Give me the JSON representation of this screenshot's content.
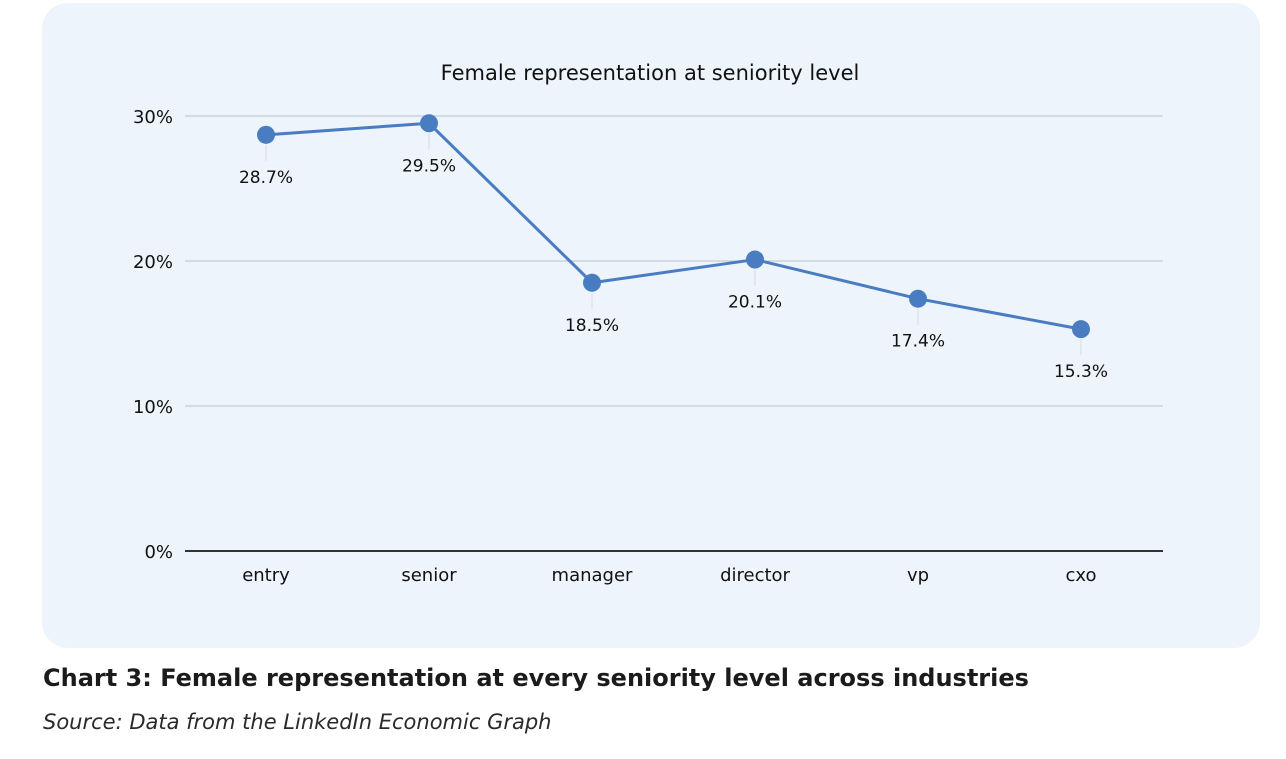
{
  "chart_data": {
    "type": "line",
    "title": "Female representation at seniority level",
    "categories": [
      "entry",
      "senior",
      "manager",
      "director",
      "vp",
      "cxo"
    ],
    "series": [
      {
        "values": [
          28.7,
          29.5,
          18.5,
          20.1,
          17.4,
          15.3
        ],
        "data_labels": [
          "28.7%",
          "29.5%",
          "18.5%",
          "20.1%",
          "17.4%",
          "15.3%"
        ]
      }
    ],
    "yticks": [
      "0%",
      "10%",
      "20%",
      "30%"
    ],
    "ytick_values": [
      0,
      10,
      20,
      30
    ],
    "ylim": [
      0,
      30
    ],
    "grid": true,
    "xlabel": "",
    "ylabel": ""
  },
  "colors": {
    "line": "#4a7cc2",
    "marker": "#4a7cc2",
    "grid": "#c5ccd6",
    "axis": "#333333",
    "background": "#edf4fb"
  },
  "caption": {
    "title": "Chart 3: Female representation at every seniority level across industries",
    "source": "Source: Data from the LinkedIn Economic Graph"
  }
}
